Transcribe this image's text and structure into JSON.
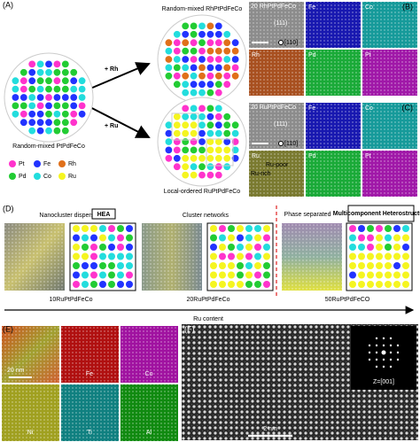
{
  "panel_a": {
    "label": "(A)",
    "start": "Random-mixed PtPdFeCo",
    "rh_arrow": "+ Rh",
    "ru_arrow": "+ Ru",
    "rh_product": "Random-mixed RhPtPdFeCo",
    "ru_product": "Local-ordered RuPtPdFeCo",
    "legend": [
      "Pt",
      "Fe",
      "Rh",
      "Pd",
      "Co",
      "Ru"
    ]
  },
  "panel_b": {
    "label": "(B)",
    "sample": "20 RhPtPdFeCo",
    "plane": "(111)",
    "zone": "[110]",
    "maps": [
      "Fe",
      "Co",
      "Rh",
      "Pd",
      "Pt"
    ]
  },
  "panel_c": {
    "label": "(C)",
    "sample": "20 RuPtPdFeCo",
    "plane": "(111)",
    "zone": "[110]",
    "maps": [
      "Fe",
      "Co",
      "Ru",
      "Pd",
      "Pt"
    ],
    "regions": [
      "Ru-poor",
      "Ru-rich"
    ]
  },
  "panel_d": {
    "label": "(D)",
    "stages": [
      "Nanocluster dispersion",
      "Cluster networks",
      "Phase separated"
    ],
    "boxes": [
      "HEA",
      "Multicomponent Heterostructure"
    ],
    "samples": [
      "10RuPtPdFeCo",
      "20RuPtPdFeCo",
      "50RuPtPdFeCO"
    ],
    "axis": "Ru content"
  },
  "panel_e": {
    "label": "(E)",
    "scale": "20 nm",
    "maps": [
      "Fe",
      "Co",
      "Ni",
      "Ti",
      "Al"
    ]
  },
  "panel_f": {
    "label": "(F)",
    "inset": "Z=[001]",
    "scale": "2 nm"
  }
}
